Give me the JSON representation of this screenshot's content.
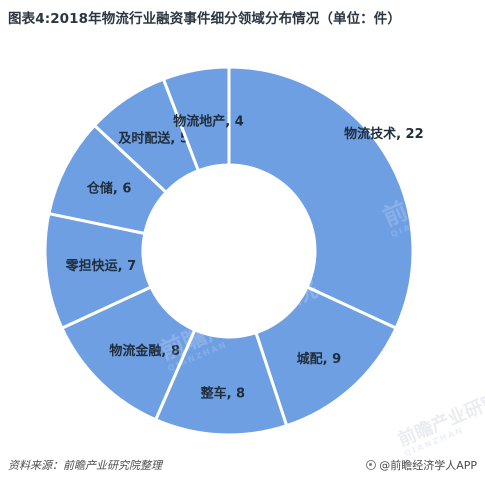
{
  "title": "图表4:2018年物流行业融资事件细分领域分布情况（单位：件）",
  "chart_data": {
    "type": "pie",
    "title": "图表4:2018年物流行业融资事件细分领域分布情况（单位：件）",
    "categories": [
      "物流技术",
      "城配",
      "整车",
      "物流金融",
      "零担快运",
      "仓储",
      "及时配送",
      "物流地产"
    ],
    "values": [
      22,
      9,
      8,
      8,
      7,
      6,
      5,
      4
    ],
    "labels": [
      "物流技术, 22",
      "城配, 9",
      "整车, 8",
      "物流金融, 8",
      "零担快运, 7",
      "仓储, 6",
      "及时配送, 5",
      "物流地产, 4"
    ],
    "colors": {
      "slice": "#6f9fe3",
      "border": "#ffffff"
    },
    "legend": "none"
  },
  "footer": {
    "source": "资料来源：前瞻产业研究院整理",
    "brand": "@前瞻经济学人APP"
  },
  "watermarks": [
    "前瞻产业研究院",
    "前瞻产业研究院",
    "前瞻产业研究院"
  ],
  "watermark_sub": "QIANZHAN"
}
